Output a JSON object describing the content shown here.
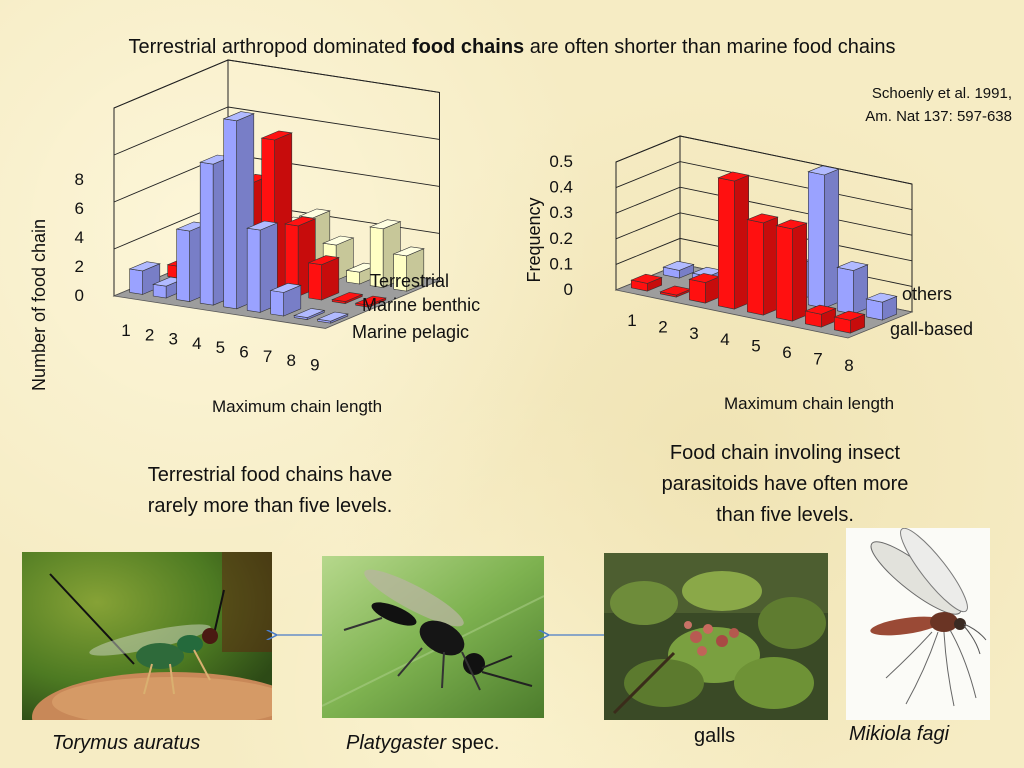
{
  "slide": {
    "title_pre": "Terrestrial arthropod dominated ",
    "title_bold": "food chains",
    "title_post": " are often shorter than marine food chains",
    "citation_line1": "Schoenly et al. 1991,",
    "citation_line2": "Am. Nat 137: 597-638",
    "caption_left_line1": "Terrestrial food chains have",
    "caption_left_line2": "rarely more than five levels.",
    "caption_right_line1": "Food chain involing insect",
    "caption_right_line2": "parasitoids have often more",
    "caption_right_line3": "than five levels.",
    "labels": {
      "torymus": "Torymus auratus",
      "platygaster_italic": "Platygaster",
      "platygaster_plain": " spec.",
      "galls": "galls",
      "mikiola": "Mikiola fagi"
    }
  },
  "colors": {
    "red": "#ff1010",
    "blue": "#9aa2ff",
    "pale": "#ffffc4",
    "floor": "#9d9d9d"
  },
  "chart_data": [
    {
      "type": "bar",
      "style": "3d-columns",
      "categories": [
        "1",
        "2",
        "3",
        "4",
        "5",
        "6",
        "7",
        "8",
        "9"
      ],
      "series": [
        {
          "name": "Terrestrial",
          "values": [
            1,
            0.5,
            3,
            6,
            8,
            3.5,
            1,
            0,
            0
          ],
          "color": "#9aa2ff"
        },
        {
          "name": "Marine benthic",
          "values": [
            0.5,
            0.5,
            3,
            4.5,
            6.5,
            3,
            1.5,
            0,
            0
          ],
          "color": "#ff1010"
        },
        {
          "name": "Marine pelagic",
          "values": [
            0.5,
            0.5,
            0.5,
            2,
            2.5,
            1.5,
            0.5,
            2.5,
            1.5
          ],
          "color": "#ffffc4"
        }
      ],
      "xlabel": "Maximum  chain length",
      "ylabel": "Number  of food chain",
      "yticks": [
        "0",
        "2",
        "4",
        "6",
        "8"
      ],
      "ylim": [
        0,
        8
      ]
    },
    {
      "type": "bar",
      "style": "3d-columns",
      "categories": [
        "1",
        "2",
        "3",
        "4",
        "5",
        "6",
        "7",
        "8"
      ],
      "series": [
        {
          "name": "others",
          "values": [
            0.03,
            0,
            0.08,
            0.5,
            0.36,
            0.36,
            0.05,
            0.05
          ],
          "color": "#ff1010"
        },
        {
          "name": "gall-based",
          "values": [
            0.03,
            0.03,
            0.2,
            0.14,
            0.14,
            0.52,
            0.17,
            0.07
          ],
          "color": "#9aa2ff"
        }
      ],
      "xlabel": "Maximum  chain length",
      "ylabel": "Frequency",
      "yticks": [
        "0",
        "0.1",
        "0.2",
        "0.3",
        "0.4",
        "0.5"
      ],
      "ylim": [
        0,
        0.5
      ]
    }
  ]
}
